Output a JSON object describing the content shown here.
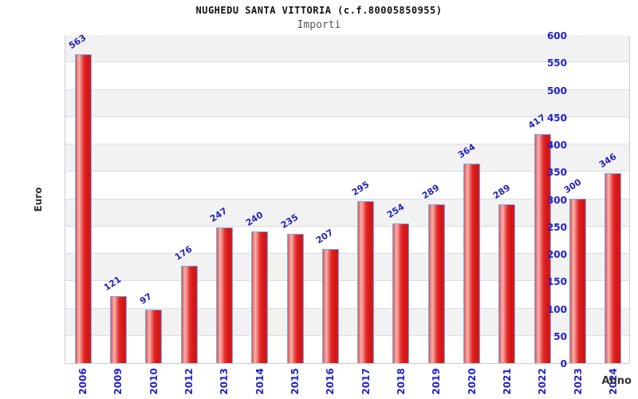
{
  "header": {
    "title": "NUGHEDU SANTA VITTORIA (c.f.80005850955)",
    "subtitle": "Importi"
  },
  "chart_data": {
    "type": "bar",
    "title": "NUGHEDU SANTA VITTORIA (c.f.80005850955)",
    "subtitle": "Importi",
    "xlabel": "Anno",
    "ylabel": "Euro",
    "categories": [
      "2006",
      "2009",
      "2010",
      "2012",
      "2013",
      "2014",
      "2015",
      "2016",
      "2017",
      "2018",
      "2019",
      "2020",
      "2021",
      "2022",
      "2023",
      "2024"
    ],
    "values": [
      563,
      121,
      97,
      176,
      247,
      240,
      235,
      207,
      295,
      254,
      289,
      364,
      289,
      417,
      300,
      346
    ],
    "ylim": [
      0,
      600
    ],
    "ytick_step": 50,
    "yticks": [
      0,
      50,
      100,
      150,
      200,
      250,
      300,
      350,
      400,
      450,
      500,
      550,
      600
    ],
    "grid": "alternating horizontal bands every 50 units",
    "legend": "none",
    "bar_labels_rotated": true,
    "x_labels_rotated": true
  },
  "colors": {
    "tick_label_blue": "#2222cc",
    "value_label_blue": "#2525bb",
    "bar_main_red": "#e42525",
    "bar_highlight": "#f5b4ac",
    "bar_border_blue": "#74a9ee",
    "band_gray": "#f2f2f2",
    "plot_border": "#cccccc",
    "axis_title_color": "#333333",
    "subtitle_gray": "#555555"
  }
}
